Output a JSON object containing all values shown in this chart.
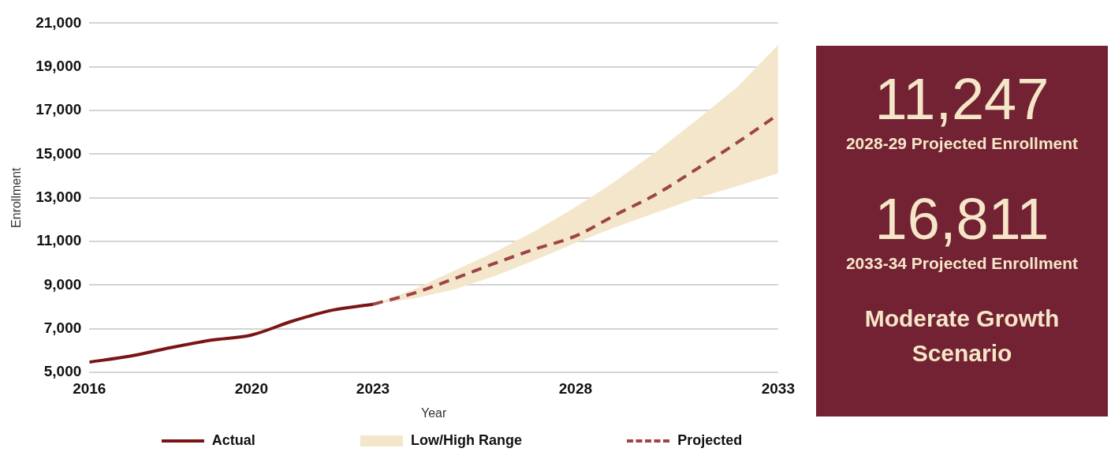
{
  "chart_data": [
    {
      "type": "line",
      "xlabel": "Year",
      "ylabel": "Enrollment",
      "xlim": [
        2016,
        2033
      ],
      "xticks": [
        2016,
        2020,
        2023,
        2028,
        2033
      ],
      "ylim": [
        5000,
        21000
      ],
      "yticks": [
        {
          "value": 5000,
          "label": "5,000"
        },
        {
          "value": 7000,
          "label": "7,000"
        },
        {
          "value": 9000,
          "label": "9,000"
        },
        {
          "value": 11000,
          "label": "11,000"
        },
        {
          "value": 13000,
          "label": "13,000"
        },
        {
          "value": 15000,
          "label": "15,000"
        },
        {
          "value": 17000,
          "label": "17,000"
        },
        {
          "value": 19000,
          "label": "19,000"
        },
        {
          "value": 21000,
          "label": "21,000"
        }
      ],
      "grid": "y",
      "legend": "bottom",
      "annotations": [
        "Low/High Range"
      ],
      "series": [
        {
          "name": "Actual",
          "type": "line",
          "color": "#7b1416",
          "line_style": "solid",
          "x": [
            2016,
            2017,
            2018,
            2019,
            2020,
            2021,
            2022,
            2023
          ],
          "values": [
            5470,
            5740,
            6130,
            6470,
            6710,
            7340,
            7850,
            8120
          ]
        },
        {
          "name": "Projected",
          "type": "line",
          "color": "#9e4444",
          "line_style": "dashed",
          "x": [
            2023,
            2024,
            2025,
            2026,
            2027,
            2028,
            2029,
            2030,
            2031,
            2032,
            2033
          ],
          "values": [
            8120,
            8620,
            9290,
            9990,
            10650,
            11247,
            12230,
            13170,
            14330,
            15540,
            16811
          ],
          "lower": [
            8120,
            8380,
            8800,
            9410,
            10140,
            10930,
            11660,
            12330,
            12990,
            13540,
            14120
          ],
          "upper": [
            8120,
            8800,
            9650,
            10500,
            11480,
            12570,
            13780,
            15120,
            16580,
            18090,
            20010
          ]
        }
      ]
    },
    {
      "type": "other",
      "color": "#722233",
      "annotations": [
        "11,247",
        "2028-29 Projected Enrollment",
        "16,811",
        "2033-34 Projected Enrollment",
        "Moderate Growth Scenario"
      ]
    }
  ]
}
